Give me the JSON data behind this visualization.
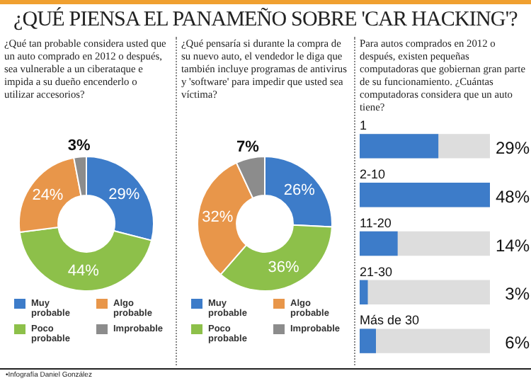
{
  "chart_data": [
    {
      "type": "donut",
      "title": "¿QUÉ PIENSA EL PANAMEÑO SOBRE 'CAR HACKING'?",
      "subtitle": "¿Qué tan probable considera usted que un auto comprado en 2012 o después, sea vulnerable a un ciberataque e impida a su dueño encenderlo o utilizar accesorios?",
      "categories": [
        "Muy probable",
        "Poco probable",
        "Algo probable",
        "Improbable"
      ],
      "values": [
        29,
        44,
        24,
        3
      ],
      "value_labels": [
        "29%",
        "44%",
        "24%",
        "3%"
      ],
      "colors": [
        "#3d7cc9",
        "#8dc04a",
        "#e8964a",
        "#8c8c8c"
      ],
      "legend": "bottom",
      "annotations": [
        "•Infografía Daniel González"
      ]
    },
    {
      "type": "donut",
      "subtitle": "¿Qué pensaría si durante la compra de su nuevo auto, el vendedor le diga que también incluye programas de antivirus y 'software' para impedir que usted sea víctima?",
      "categories": [
        "Muy probable",
        "Poco probable",
        "Algo probable",
        "Improbable"
      ],
      "values": [
        26,
        36,
        32,
        7
      ],
      "value_labels": [
        "26%",
        "36%",
        "32%",
        "7%"
      ],
      "colors": [
        "#3d7cc9",
        "#8dc04a",
        "#e8964a",
        "#8c8c8c"
      ],
      "legend": "bottom"
    },
    {
      "type": "bar",
      "orientation": "horizontal",
      "subtitle": "Para autos comprados en 2012 o después, existen pequeñas computadoras que gobiernan gran parte de su funcionamiento. ¿Cuántas computadoras considera que un auto tiene?",
      "categories": [
        "1",
        "2-10",
        "11-20",
        "21-30",
        "Más de 30"
      ],
      "values": [
        29,
        48,
        14,
        3,
        6
      ],
      "value_labels": [
        "29%",
        "48%",
        "14%",
        "3%",
        "6%"
      ],
      "color": "#3d7cc9",
      "xlim": [
        0,
        48
      ],
      "tick_labels": "y"
    }
  ]
}
